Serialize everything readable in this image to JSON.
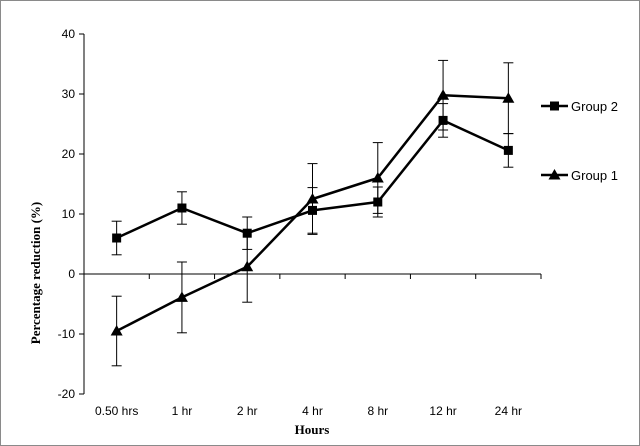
{
  "chart_data": {
    "type": "line",
    "xlabel": "Hours",
    "ylabel": "Percentage reduction (%)",
    "categories": [
      "0.50 hrs",
      "1 hr",
      "2 hr",
      "4 hr",
      "8 hr",
      "12 hr",
      "24 hr"
    ],
    "ylim": [
      -20,
      40
    ],
    "yticks": [
      -20,
      -10,
      0,
      10,
      20,
      30,
      40
    ],
    "grid": false,
    "legend_position": "right",
    "series": [
      {
        "name": "Group 2",
        "marker": "square",
        "color": "#000000",
        "values": [
          6,
          11,
          6.8,
          10.6,
          12,
          25.6,
          20.6
        ],
        "err": [
          2.8,
          2.7,
          2.7,
          3.8,
          2.5,
          2.8,
          2.8
        ]
      },
      {
        "name": "Group 1",
        "marker": "triangle",
        "color": "#000000",
        "values": [
          -9.5,
          -3.9,
          1.2,
          12.5,
          16,
          29.8,
          29.3
        ],
        "err": [
          5.8,
          5.9,
          5.9,
          5.9,
          5.9,
          5.8,
          5.9
        ]
      }
    ]
  }
}
